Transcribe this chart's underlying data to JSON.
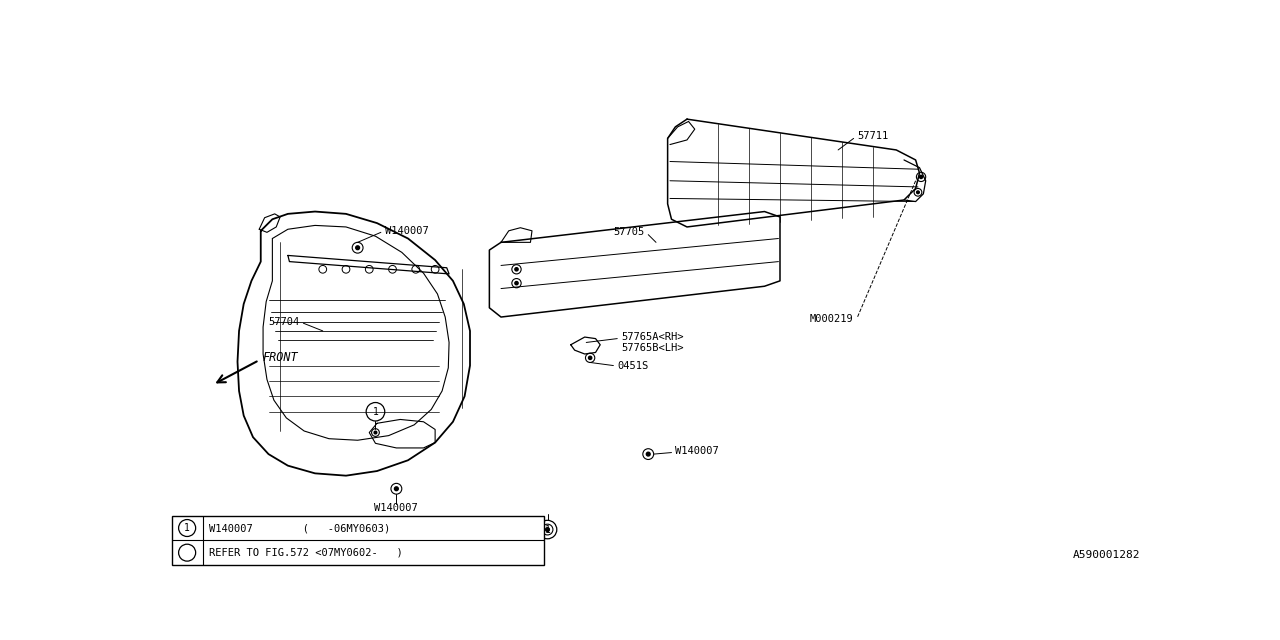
{
  "bg_color": "#ffffff",
  "line_color": "#000000",
  "fig_width": 12.8,
  "fig_height": 6.4,
  "diagram_id": "A590001282",
  "table_row1": "W140007        (   -06MY0603)",
  "table_row2": "REFER TO FIG.572 <07MY0602-   )"
}
